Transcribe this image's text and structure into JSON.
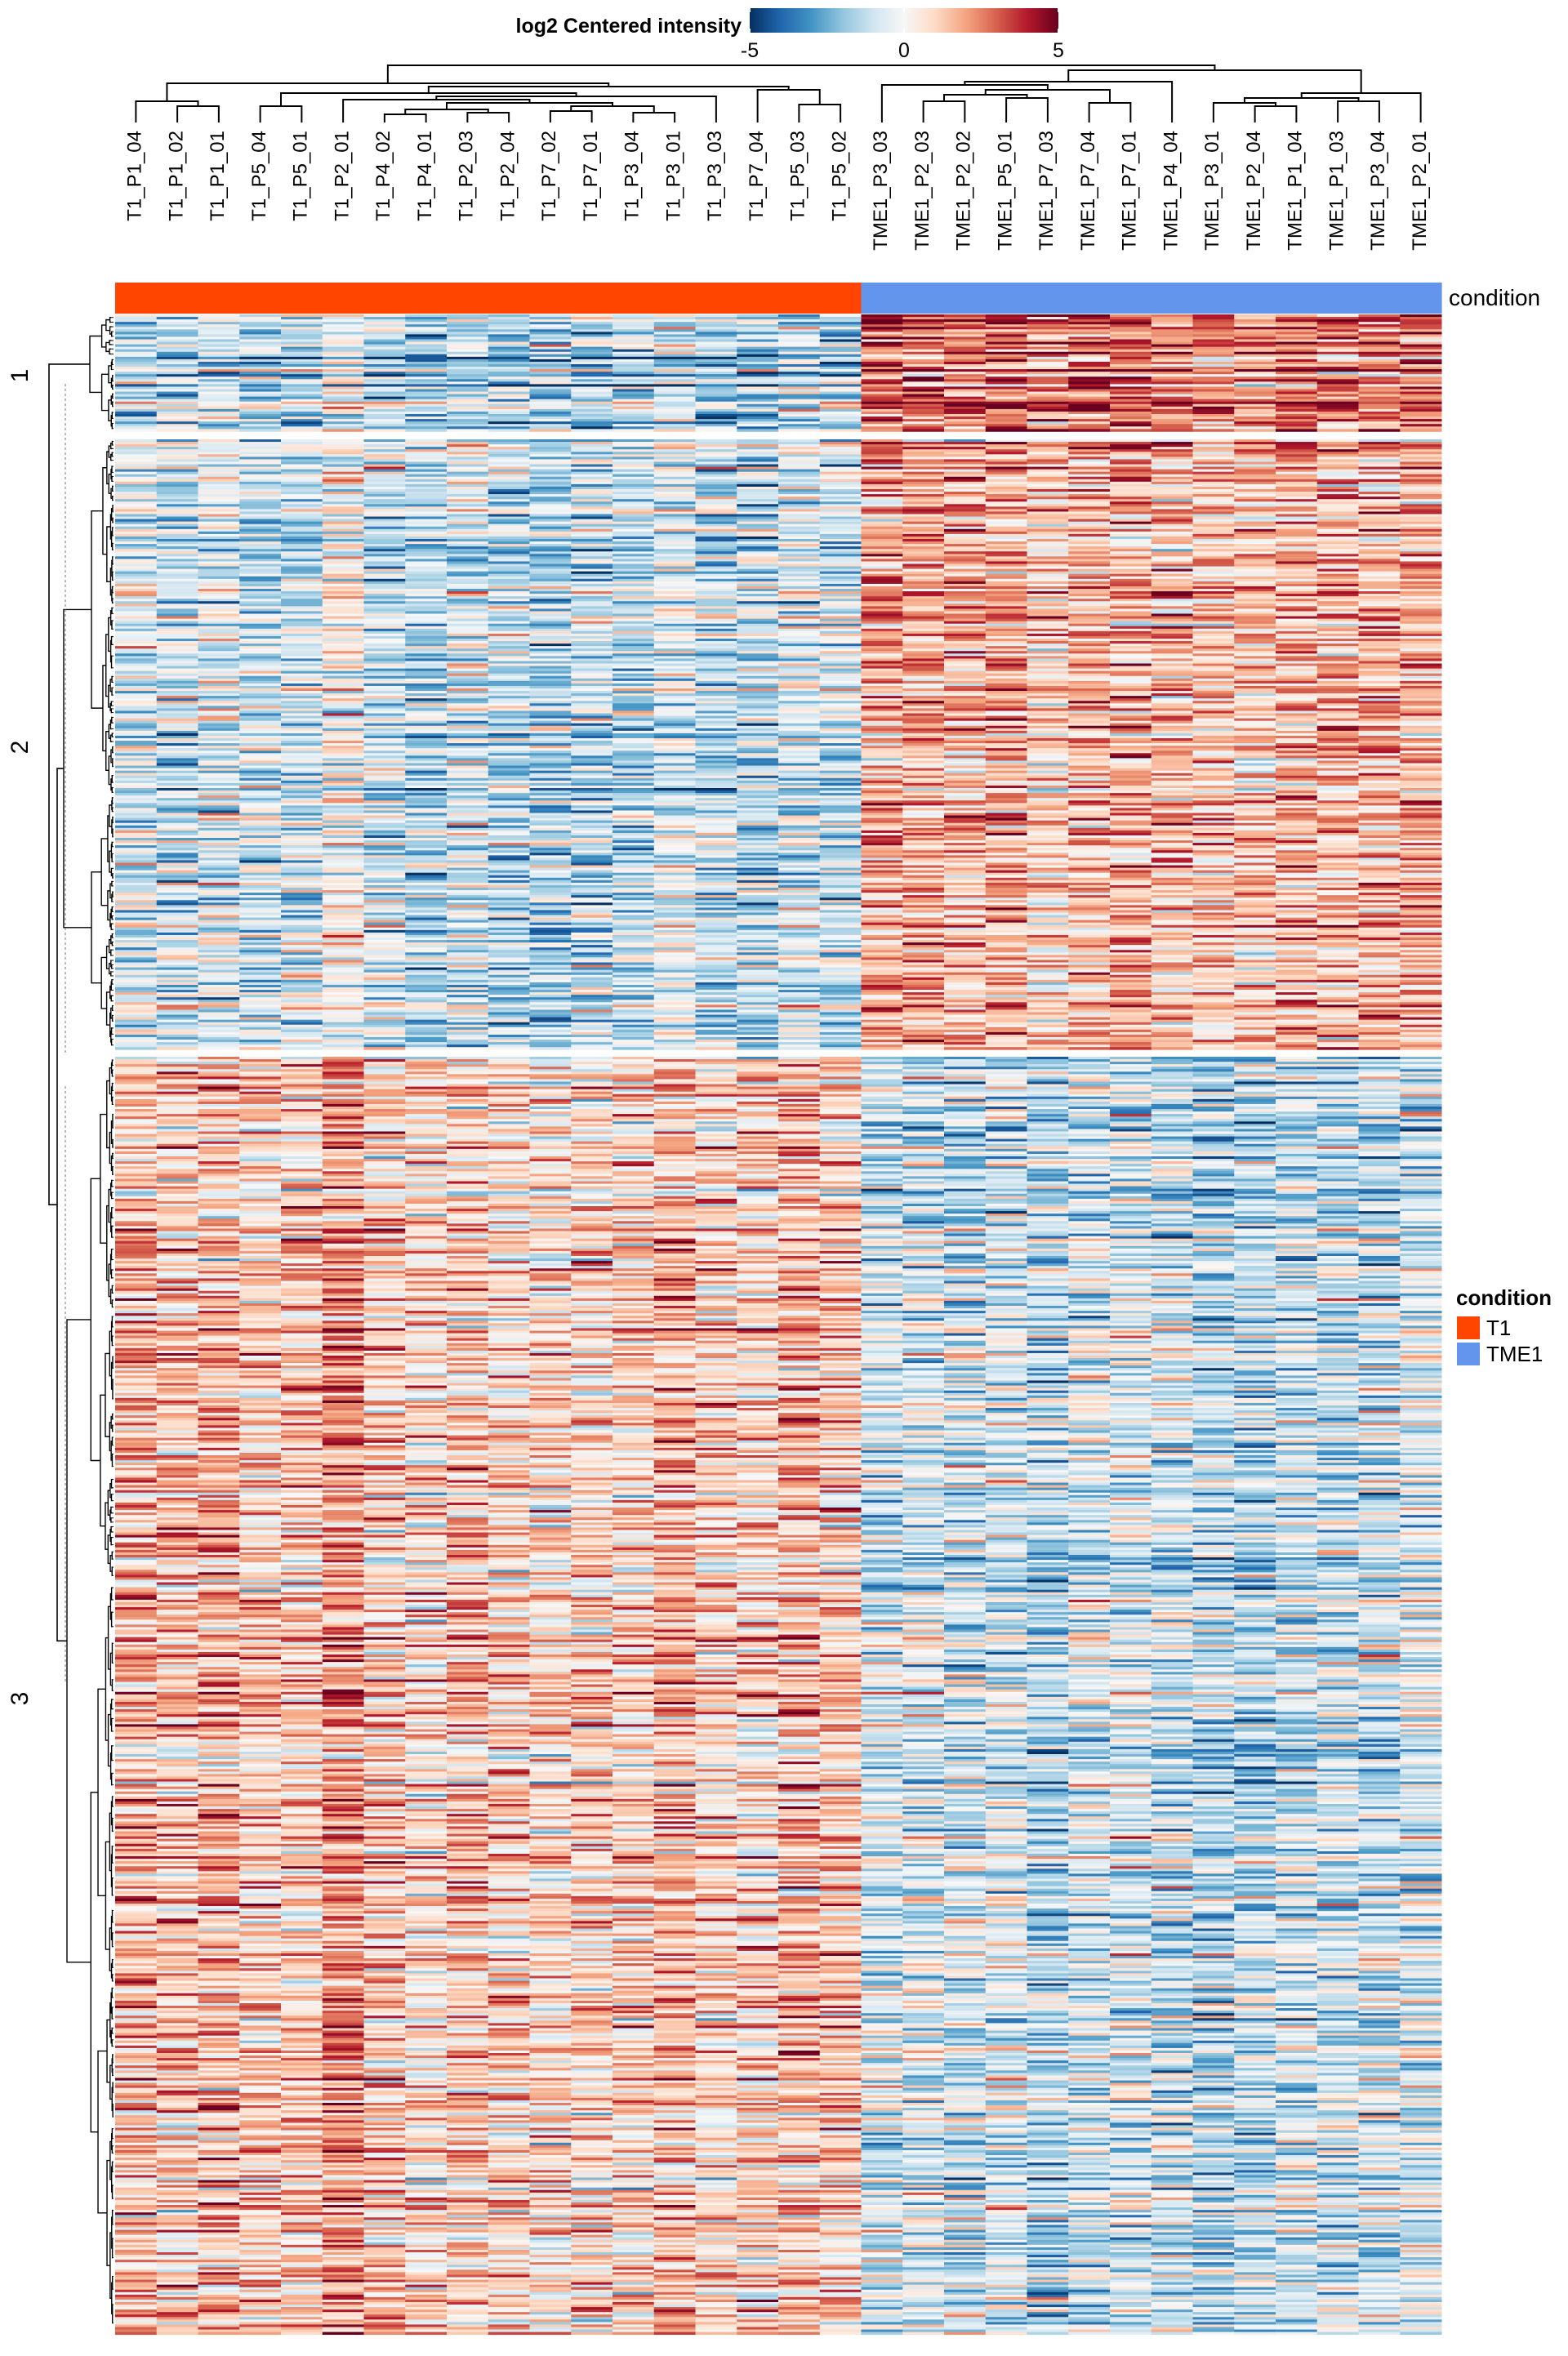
{
  "chart_data": {
    "type": "heatmap",
    "title": "",
    "color_scale": {
      "label": "log2 Centered intensity",
      "min": -5,
      "mid": 0,
      "max": 5,
      "ticks": [
        "-5",
        "0",
        "5"
      ],
      "colors": [
        "#053061",
        "#2166ac",
        "#4393c3",
        "#92c5de",
        "#d1e5f0",
        "#f7f7f7",
        "#fddbc7",
        "#f4a582",
        "#d6604d",
        "#b2182b",
        "#67001f"
      ]
    },
    "columns": [
      "T1_P1_04",
      "T1_P1_02",
      "T1_P1_01",
      "T1_P5_04",
      "T1_P5_01",
      "T1_P2_01",
      "T1_P4_02",
      "T1_P4_01",
      "T1_P2_03",
      "T1_P2_04",
      "T1_P7_02",
      "T1_P7_01",
      "T1_P3_04",
      "T1_P3_01",
      "T1_P3_03",
      "T1_P7_04",
      "T1_P5_03",
      "T1_P5_02",
      "TME1_P3_03",
      "TME1_P2_03",
      "TME1_P2_02",
      "TME1_P5_01",
      "TME1_P7_03",
      "TME1_P7_04",
      "TME1_P7_01",
      "TME1_P4_04",
      "TME1_P3_01",
      "TME1_P2_04",
      "TME1_P1_04",
      "TME1_P1_03",
      "TME1_P3_04",
      "TME1_P2_01"
    ],
    "annotation": {
      "name": "condition",
      "values": [
        "T1",
        "T1",
        "T1",
        "T1",
        "T1",
        "T1",
        "T1",
        "T1",
        "T1",
        "T1",
        "T1",
        "T1",
        "T1",
        "T1",
        "T1",
        "T1",
        "T1",
        "T1",
        "TME1",
        "TME1",
        "TME1",
        "TME1",
        "TME1",
        "TME1",
        "TME1",
        "TME1",
        "TME1",
        "TME1",
        "TME1",
        "TME1",
        "TME1",
        "TME1"
      ]
    },
    "legend": {
      "title": "condition",
      "placement": "right",
      "entries": [
        {
          "label": "T1",
          "color": "#ff4500"
        },
        {
          "label": "TME1",
          "color": "#6495ed"
        }
      ]
    },
    "row_clusters": [
      {
        "label": "1",
        "mean_by_condition": {
          "T1": -1.6,
          "TME1": 2.4
        }
      },
      {
        "label": "2",
        "mean_by_condition": {
          "T1": -0.9,
          "TME1": 1.4
        }
      },
      {
        "label": "3",
        "mean_by_condition": {
          "T1": 1.3,
          "TME1": -1.1
        }
      }
    ],
    "grid": false
  }
}
